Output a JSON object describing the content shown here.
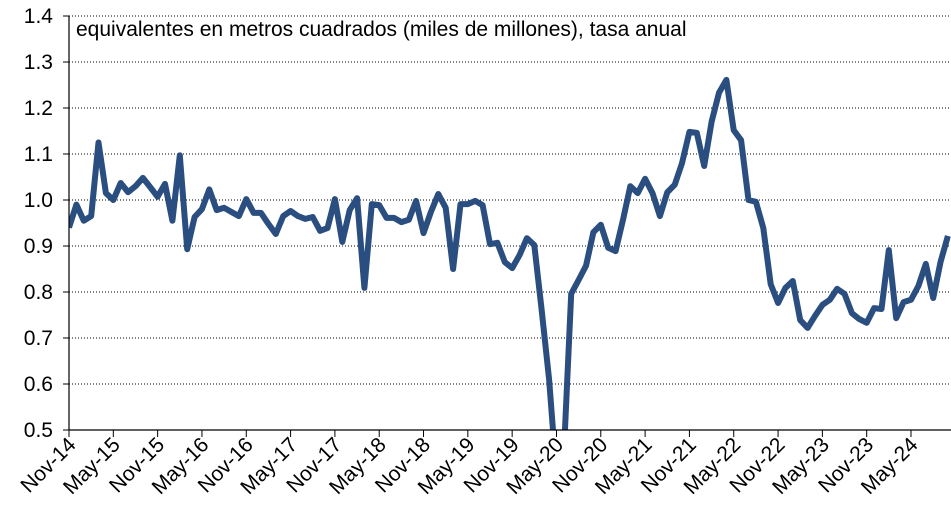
{
  "chart_data": {
    "type": "line",
    "title": "equivalentes en metros cuadrados  (miles de millones), tasa anual",
    "categories": [
      "Nov-14",
      null,
      null,
      null,
      null,
      null,
      "May-15",
      null,
      null,
      null,
      null,
      null,
      "Nov-15",
      null,
      null,
      null,
      null,
      null,
      "May-16",
      null,
      null,
      null,
      null,
      null,
      "Nov-16",
      null,
      null,
      null,
      null,
      null,
      "May-17",
      null,
      null,
      null,
      null,
      null,
      "Nov-17",
      null,
      null,
      null,
      null,
      null,
      "May-18",
      null,
      null,
      null,
      null,
      null,
      "Nov-18",
      null,
      null,
      null,
      null,
      null,
      "May-19",
      null,
      null,
      null,
      null,
      null,
      "Nov-19",
      null,
      null,
      null,
      null,
      null,
      "May-20",
      null,
      null,
      null,
      null,
      null,
      "Nov-20",
      null,
      null,
      null,
      null,
      null,
      "May-21",
      null,
      null,
      null,
      null,
      null,
      "Nov-21",
      null,
      null,
      null,
      null,
      null,
      "May-22",
      null,
      null,
      null,
      null,
      null,
      "Nov-22",
      null,
      null,
      null,
      null,
      null,
      "May-23",
      null,
      null,
      null,
      null,
      null,
      "Nov-23",
      null,
      null,
      null,
      null,
      null,
      "May-24",
      null,
      null,
      null,
      null,
      null
    ],
    "series": [
      {
        "name": "equivalentes en metros cuadrados",
        "color": "#2b4e80",
        "values": [
          0.94,
          0.99,
          0.955,
          0.965,
          1.125,
          1.015,
          1.0,
          1.037,
          1.017,
          1.03,
          1.048,
          1.028,
          1.007,
          1.035,
          0.955,
          1.097,
          0.893,
          0.963,
          0.98,
          1.023,
          0.978,
          0.983,
          0.974,
          0.965,
          1.002,
          0.972,
          0.972,
          0.948,
          0.926,
          0.965,
          0.976,
          0.965,
          0.959,
          0.963,
          0.933,
          0.939,
          1.002,
          0.909,
          0.978,
          1.004,
          0.809,
          0.991,
          0.989,
          0.961,
          0.961,
          0.952,
          0.957,
          0.998,
          0.928,
          0.974,
          1.013,
          0.983,
          0.85,
          0.991,
          0.991,
          0.998,
          0.989,
          0.904,
          0.907,
          0.865,
          0.852,
          0.88,
          0.917,
          0.902,
          0.76,
          0.61,
          0.4,
          0.45,
          0.796,
          0.826,
          0.857,
          0.93,
          0.946,
          0.896,
          0.889,
          0.957,
          1.03,
          1.015,
          1.046,
          1.015,
          0.965,
          1.017,
          1.033,
          1.08,
          1.148,
          1.146,
          1.074,
          1.17,
          1.233,
          1.261,
          1.152,
          1.13,
          1.0,
          0.996,
          0.939,
          0.817,
          0.776,
          0.809,
          0.824,
          0.739,
          0.722,
          0.748,
          0.772,
          0.783,
          0.807,
          0.796,
          0.754,
          0.741,
          0.733,
          0.765,
          0.763,
          0.891,
          0.743,
          0.778,
          0.783,
          0.813,
          0.861,
          0.787,
          0.865,
          0.922
        ]
      }
    ],
    "ylim": [
      0.5,
      1.4
    ],
    "yticks": [
      {
        "value": 0.5,
        "label": "0.5"
      },
      {
        "value": 0.6,
        "label": "0.6"
      },
      {
        "value": 0.7,
        "label": "0.7"
      },
      {
        "value": 0.8,
        "label": "0.8"
      },
      {
        "value": 0.9,
        "label": "0.9"
      },
      {
        "value": 1.0,
        "label": "1.0"
      },
      {
        "value": 1.1,
        "label": "1.1"
      },
      {
        "value": 1.2,
        "label": "1.2"
      },
      {
        "value": 1.3,
        "label": "1.3"
      },
      {
        "value": 1.4,
        "label": "1.4"
      }
    ],
    "grid": true
  }
}
